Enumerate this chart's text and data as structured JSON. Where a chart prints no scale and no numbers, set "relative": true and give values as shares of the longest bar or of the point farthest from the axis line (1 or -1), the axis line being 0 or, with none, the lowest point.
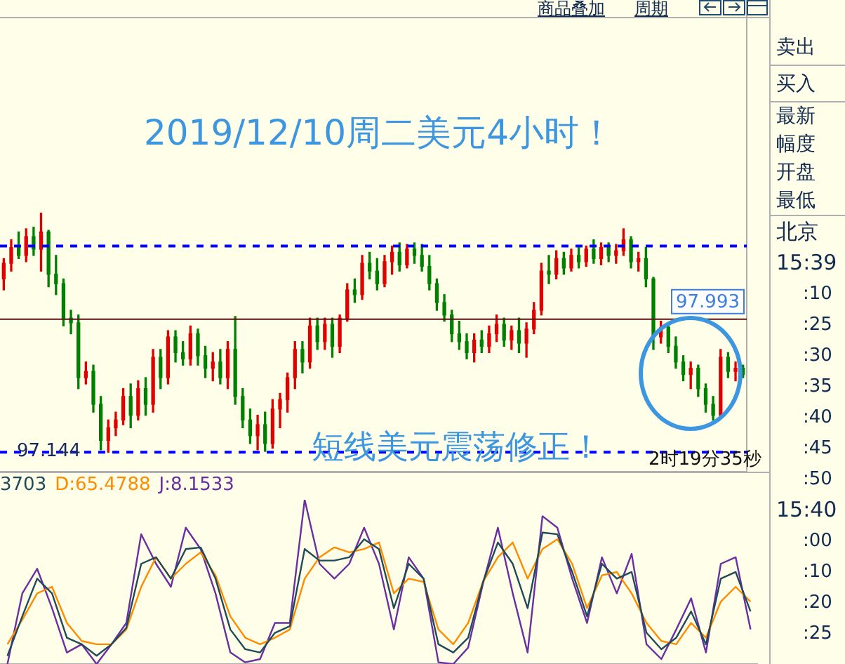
{
  "chart_data": [
    {
      "type": "candlestick",
      "title": "2019/12/10周二美元4小时！",
      "categories": [
        null,
        null,
        null,
        null,
        null,
        null,
        null,
        null,
        null,
        null,
        null,
        null,
        null,
        null,
        null,
        null,
        null,
        null,
        null,
        null,
        null,
        null,
        null,
        null,
        null,
        null,
        null,
        null,
        null,
        null,
        null,
        null,
        null,
        null,
        null,
        null,
        null,
        null,
        null,
        null,
        null,
        null,
        null,
        null,
        null,
        null,
        null,
        null,
        null,
        null,
        null,
        null,
        null,
        null,
        null,
        null,
        null,
        null,
        null,
        null,
        null,
        null,
        null,
        null,
        null,
        null,
        null,
        null,
        null,
        null,
        null,
        null,
        null,
        null,
        null,
        null,
        null,
        null,
        null,
        null,
        null,
        null,
        null,
        null,
        null,
        null,
        null,
        null,
        null,
        null,
        null,
        null,
        null,
        null,
        null,
        null,
        null,
        null,
        null,
        null
      ],
      "ohlc": [
        [
          98.25,
          98.38,
          98.18,
          98.35
        ],
        [
          98.35,
          98.5,
          98.3,
          98.45
        ],
        [
          98.45,
          98.55,
          98.38,
          98.4
        ],
        [
          98.4,
          98.57,
          98.36,
          98.52
        ],
        [
          98.52,
          98.58,
          98.4,
          98.44
        ],
        [
          98.44,
          98.67,
          98.3,
          98.55
        ],
        [
          98.55,
          98.56,
          98.2,
          98.28
        ],
        [
          98.28,
          98.4,
          98.15,
          98.22
        ],
        [
          98.22,
          98.25,
          97.95,
          98.0
        ],
        [
          98.0,
          98.05,
          97.9,
          97.97
        ],
        [
          97.97,
          98.02,
          97.55,
          97.62
        ],
        [
          97.62,
          97.72,
          97.58,
          97.66
        ],
        [
          97.66,
          97.7,
          97.4,
          97.45
        ],
        [
          97.45,
          97.5,
          97.16,
          97.22
        ],
        [
          97.22,
          97.35,
          97.144,
          97.3
        ],
        [
          97.3,
          97.4,
          97.25,
          97.35
        ],
        [
          97.35,
          97.55,
          97.32,
          97.5
        ],
        [
          97.5,
          97.58,
          97.3,
          97.38
        ],
        [
          97.38,
          97.6,
          97.35,
          97.55
        ],
        [
          97.55,
          97.62,
          97.38,
          97.45
        ],
        [
          97.45,
          97.8,
          97.4,
          97.75
        ],
        [
          97.75,
          97.8,
          97.55,
          97.62
        ],
        [
          97.62,
          97.92,
          97.58,
          97.88
        ],
        [
          97.88,
          97.92,
          97.72,
          97.78
        ],
        [
          97.78,
          97.85,
          97.7,
          97.74
        ],
        [
          97.74,
          97.95,
          97.7,
          97.9
        ],
        [
          97.9,
          97.93,
          97.7,
          97.76
        ],
        [
          97.76,
          97.82,
          97.62,
          97.68
        ],
        [
          97.68,
          97.78,
          97.6,
          97.72
        ],
        [
          97.72,
          97.8,
          97.58,
          97.62
        ],
        [
          97.62,
          97.85,
          97.55,
          97.8
        ],
        [
          97.8,
          98.01,
          97.45,
          97.5
        ],
        [
          97.5,
          97.55,
          97.3,
          97.35
        ],
        [
          97.35,
          97.42,
          97.2,
          97.25
        ],
        [
          97.25,
          97.38,
          97.16,
          97.32
        ],
        [
          97.32,
          97.4,
          97.15,
          97.2
        ],
        [
          97.2,
          97.48,
          97.17,
          97.42
        ],
        [
          97.42,
          97.52,
          97.3,
          97.48
        ],
        [
          97.48,
          97.65,
          97.4,
          97.62
        ],
        [
          97.62,
          97.85,
          97.55,
          97.8
        ],
        [
          97.8,
          97.85,
          97.65,
          97.72
        ],
        [
          97.72,
          98.0,
          97.68,
          97.95
        ],
        [
          97.95,
          98.0,
          97.8,
          97.85
        ],
        [
          97.85,
          98.0,
          97.8,
          97.96
        ],
        [
          97.96,
          98.0,
          97.75,
          97.82
        ],
        [
          97.82,
          98.02,
          97.78,
          98.0
        ],
        [
          98.0,
          98.22,
          97.98,
          98.18
        ],
        [
          98.18,
          98.25,
          98.1,
          98.15
        ],
        [
          98.15,
          98.4,
          98.12,
          98.35
        ],
        [
          98.35,
          98.42,
          98.25,
          98.3
        ],
        [
          98.3,
          98.38,
          98.18,
          98.22
        ],
        [
          98.22,
          98.4,
          98.2,
          98.36
        ],
        [
          98.36,
          98.46,
          98.28,
          98.42
        ],
        [
          98.42,
          98.48,
          98.3,
          98.34
        ],
        [
          98.34,
          98.47,
          98.32,
          98.44
        ],
        [
          98.44,
          98.48,
          98.35,
          98.4
        ],
        [
          98.4,
          98.47,
          98.3,
          98.33
        ],
        [
          98.33,
          98.4,
          98.18,
          98.22
        ],
        [
          98.22,
          98.25,
          98.05,
          98.1
        ],
        [
          98.1,
          98.15,
          97.98,
          98.02
        ],
        [
          98.02,
          98.05,
          97.85,
          97.9
        ],
        [
          97.9,
          97.98,
          97.8,
          97.85
        ],
        [
          97.85,
          97.9,
          97.74,
          97.78
        ],
        [
          97.78,
          97.9,
          97.72,
          97.86
        ],
        [
          97.86,
          97.92,
          97.78,
          97.82
        ],
        [
          97.82,
          97.95,
          97.78,
          97.9
        ],
        [
          97.9,
          98.02,
          97.85,
          97.96
        ],
        [
          97.96,
          98.0,
          97.82,
          97.86
        ],
        [
          97.86,
          97.95,
          97.8,
          97.92
        ],
        [
          97.92,
          98.0,
          97.78,
          97.84
        ],
        [
          97.84,
          97.97,
          97.75,
          97.93
        ],
        [
          97.93,
          98.1,
          97.9,
          98.05
        ],
        [
          98.05,
          98.35,
          98.02,
          98.3
        ],
        [
          98.3,
          98.4,
          98.22,
          98.28
        ],
        [
          98.28,
          98.43,
          98.25,
          98.38
        ],
        [
          98.38,
          98.42,
          98.28,
          98.32
        ],
        [
          98.32,
          98.44,
          98.3,
          98.4
        ],
        [
          98.4,
          98.45,
          98.32,
          98.36
        ],
        [
          98.36,
          98.46,
          98.33,
          98.44
        ],
        [
          98.44,
          98.5,
          98.35,
          98.38
        ],
        [
          98.38,
          98.48,
          98.34,
          98.45
        ],
        [
          98.45,
          98.48,
          98.36,
          98.4
        ],
        [
          98.4,
          98.47,
          98.35,
          98.43
        ],
        [
          98.43,
          98.57,
          98.4,
          98.5
        ],
        [
          98.5,
          98.52,
          98.32,
          98.36
        ],
        [
          98.36,
          98.42,
          98.3,
          98.38
        ],
        [
          98.38,
          98.45,
          98.2,
          98.25
        ],
        [
          98.25,
          98.26,
          97.8,
          97.88
        ],
        [
          97.88,
          97.98,
          97.84,
          97.94
        ],
        [
          97.94,
          97.96,
          97.78,
          97.82
        ],
        [
          97.82,
          97.88,
          97.68,
          97.72
        ],
        [
          97.72,
          97.76,
          97.6,
          97.64
        ],
        [
          97.64,
          97.72,
          97.55,
          97.68
        ],
        [
          97.68,
          97.7,
          97.5,
          97.55
        ],
        [
          97.55,
          97.58,
          97.4,
          97.45
        ],
        [
          97.45,
          97.5,
          97.35,
          97.38
        ],
        [
          97.38,
          97.8,
          97.36,
          97.75
        ],
        [
          97.75,
          97.78,
          97.62,
          97.66
        ],
        [
          97.66,
          97.72,
          97.6,
          97.68
        ],
        [
          97.68,
          97.7,
          97.62,
          97.64
        ]
      ],
      "ylim": [
        97.02,
        100.03
      ],
      "grid": false,
      "legend": false,
      "ref_lines": [
        {
          "axis": "y",
          "value": 98.46,
          "label": null,
          "color": "#0000ff",
          "line_style": "dashed"
        },
        {
          "axis": "y",
          "value": 97.144,
          "label": "97.144",
          "color": "#0000ff",
          "line_style": "dashed"
        },
        {
          "axis": "y",
          "value": 97.993,
          "label": "97.993",
          "color": "#5a1010",
          "line_style": "solid"
        }
      ],
      "annotations": [
        "短线美元震荡修正！",
        "2时19分35秒"
      ]
    },
    {
      "type": "line",
      "relative": true,
      "legend": "top left",
      "marker": "none",
      "line_style": "solid",
      "categories": [
        null,
        null,
        null,
        null,
        null,
        null,
        null,
        null,
        null,
        null,
        null,
        null,
        null,
        null,
        null,
        null,
        null,
        null,
        null,
        null,
        null,
        null,
        null,
        null,
        null,
        null,
        null,
        null,
        null,
        null,
        null,
        null,
        null,
        null,
        null,
        null,
        null,
        null,
        null,
        null,
        null,
        null,
        null,
        null,
        null,
        null,
        null,
        null,
        null,
        null,
        null
      ],
      "series": [
        {
          "name": "3703",
          "color": "#1f4a5a",
          "values": [
            0.05,
            0.29,
            0.52,
            0.43,
            0.16,
            0.12,
            0.05,
            0.12,
            0.22,
            0.61,
            0.65,
            0.52,
            0.7,
            0.71,
            0.52,
            0.21,
            0.09,
            0.07,
            0.19,
            0.23,
            0.7,
            0.63,
            0.63,
            0.65,
            0.76,
            0.7,
            0.34,
            0.61,
            0.52,
            0.12,
            0.07,
            0.16,
            0.5,
            0.74,
            0.61,
            0.34,
            0.8,
            0.79,
            0.56,
            0.29,
            0.61,
            0.52,
            0.56,
            0.19,
            0.09,
            0.16,
            0.32,
            0.12,
            0.52,
            0.56,
            0.32
          ]
        },
        {
          "name": "D:65.4788",
          "color": "#ff8c00",
          "values": [
            0.12,
            0.27,
            0.43,
            0.47,
            0.25,
            0.14,
            0.12,
            0.12,
            0.21,
            0.47,
            0.65,
            0.52,
            0.61,
            0.68,
            0.54,
            0.29,
            0.16,
            0.12,
            0.16,
            0.21,
            0.52,
            0.65,
            0.71,
            0.68,
            0.7,
            0.74,
            0.43,
            0.52,
            0.5,
            0.21,
            0.12,
            0.25,
            0.5,
            0.65,
            0.74,
            0.52,
            0.7,
            0.76,
            0.61,
            0.34,
            0.54,
            0.56,
            0.43,
            0.25,
            0.14,
            0.12,
            0.25,
            0.16,
            0.38,
            0.47,
            0.38
          ]
        },
        {
          "name": "J:8.1533",
          "color": "#6a2fa0",
          "values": [
            0,
            0.43,
            0.58,
            0.34,
            0.07,
            0.12,
            0,
            0.12,
            0.25,
            0.79,
            0.61,
            0.47,
            0.83,
            0.7,
            0.43,
            0.07,
            0.01,
            0.03,
            0.25,
            0.25,
            1,
            0.61,
            0.52,
            0.61,
            0.83,
            0.61,
            0.21,
            0.65,
            0.52,
            0.01,
            0,
            0.1,
            0.49,
            0.83,
            0.43,
            0.07,
            0.9,
            0.83,
            0.52,
            0.25,
            0.65,
            0.43,
            0.67,
            0.12,
            0.03,
            0.21,
            0.4,
            0.07,
            0.61,
            0.65,
            0.21
          ]
        }
      ]
    },
    {
      "type": "other",
      "annotations": [
        "商品叠加",
        "周期",
        "卖出",
        "买入",
        "最新",
        "幅度",
        "开盘",
        "最低",
        "北京",
        "15:39",
        ":10",
        ":25",
        ":30",
        ":35",
        ":40",
        ":45",
        ":50",
        "15:40",
        ":00",
        ":10",
        ":20",
        ":25"
      ]
    }
  ]
}
